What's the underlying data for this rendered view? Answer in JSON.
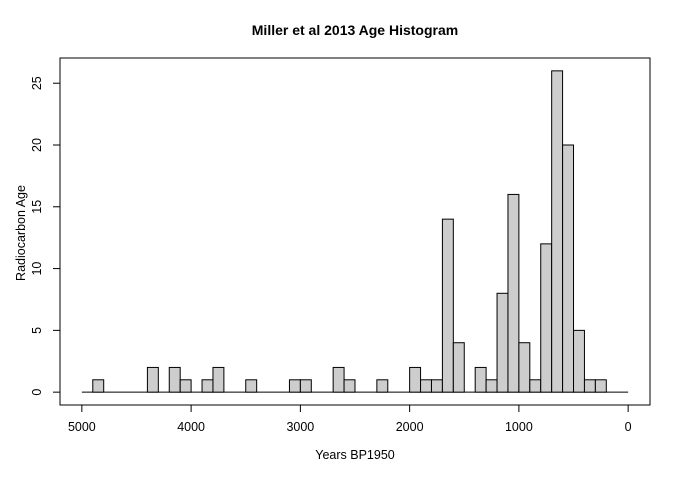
{
  "chart_data": {
    "type": "bar",
    "subtype": "histogram",
    "title": "Miller et al 2013 Age Histogram",
    "xlabel": "Years BP1950",
    "ylabel": "Radiocarbon Age",
    "x_axis_reversed": true,
    "x_ticks": [
      5000,
      4000,
      3000,
      2000,
      1000,
      0
    ],
    "y_ticks": [
      0,
      5,
      10,
      15,
      20,
      25
    ],
    "xlim": [
      5200,
      -200
    ],
    "ylim": [
      -1.04,
      27.04
    ],
    "grid": false,
    "legend_position": "none",
    "bin_width": 100,
    "first_bin_start": 5000,
    "last_bin_end": 0,
    "bin_direction": "descending",
    "counts": [
      0,
      1,
      0,
      0,
      0,
      0,
      2,
      0,
      2,
      1,
      0,
      1,
      2,
      0,
      0,
      1,
      0,
      0,
      0,
      1,
      1,
      0,
      0,
      2,
      1,
      0,
      0,
      1,
      0,
      0,
      2,
      1,
      1,
      14,
      4,
      0,
      2,
      1,
      8,
      16,
      4,
      1,
      12,
      26,
      20,
      5,
      1,
      1,
      0,
      0
    ],
    "colors": {
      "bar_fill": "#cdcdcd",
      "bar_stroke": "#000000",
      "axis": "#000000",
      "text": "#000000",
      "background": "#ffffff"
    }
  }
}
